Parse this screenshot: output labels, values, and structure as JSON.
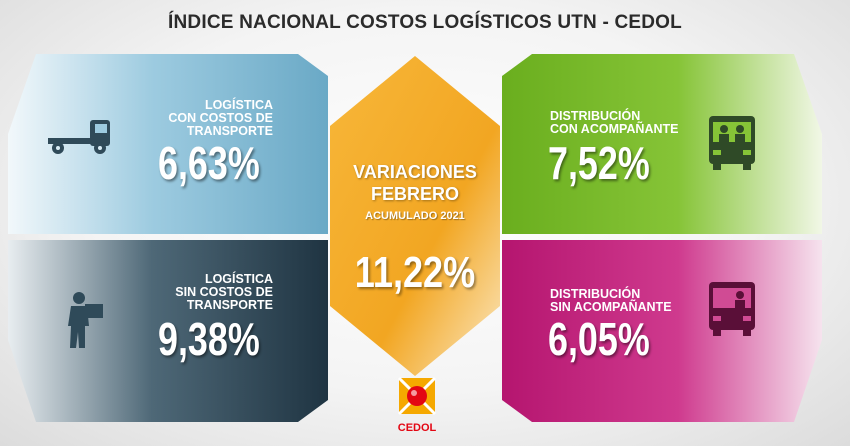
{
  "title": "ÍNDICE NACIONAL COSTOS LOGÍSTICOS UTN - CEDOL",
  "center": {
    "line1": "VARIACIONES",
    "line2": "FEBRERO",
    "subtitle": "ACUMULADO 2021",
    "value": "11,22%",
    "color": "#f2a622"
  },
  "panels": {
    "top_left": {
      "label1": "LOGÍSTICA",
      "label2": "CON COSTOS DE",
      "label3": "TRANSPORTE",
      "value": "6,63%",
      "color": "#7fb8d3",
      "icon": "truck-icon"
    },
    "bottom_left": {
      "label1": "LOGÍSTICA",
      "label2": "SIN COSTOS DE",
      "label3": "TRANSPORTE",
      "value": "9,38%",
      "color": "#2f4a59",
      "icon": "worker-carrying-box-icon"
    },
    "top_right": {
      "label1": "DISTRIBUCIÓN",
      "label2": "CON ACOMPAÑANTE",
      "value": "7,52%",
      "color": "#7dbd2b",
      "icon": "van-two-persons-icon"
    },
    "bottom_right": {
      "label1": "DISTRIBUCIÓN",
      "label2": "SIN ACOMPAÑANTE",
      "value": "6,05%",
      "color": "#c21e7e",
      "icon": "van-one-person-icon"
    }
  },
  "logo": {
    "text": "CEDOL",
    "color": "#f5a800",
    "accent": "#e30613"
  }
}
